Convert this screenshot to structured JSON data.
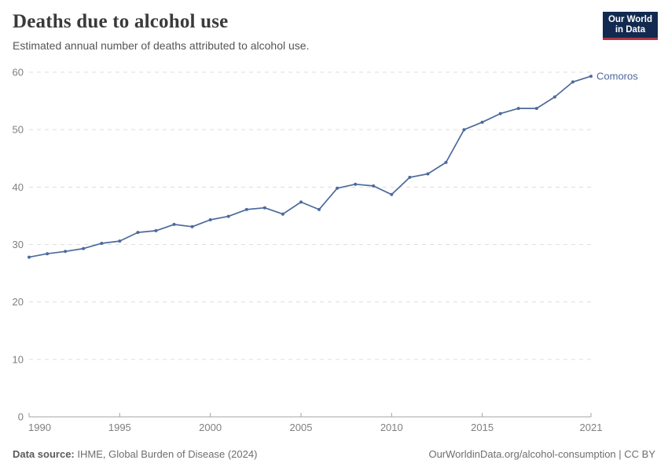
{
  "header": {
    "title": "Deaths due to alcohol use",
    "subtitle": "Estimated annual number of deaths attributed to alcohol use."
  },
  "logo": {
    "line1": "Our World",
    "line2": "in Data",
    "bg_color": "#122A4F",
    "accent_color": "#B13346"
  },
  "footer": {
    "source_label": "Data source:",
    "source_text": " IHME, Global Burden of Disease (2024)",
    "link_text": "OurWorldinData.org/alcohol-consumption | CC BY"
  },
  "chart_data": {
    "type": "line",
    "title": "Deaths due to alcohol use",
    "subtitle": "Estimated annual number of deaths attributed to alcohol use.",
    "entity_label": "Comoros",
    "line_color": "#4C6A9C",
    "grid": "horizontal-dashed",
    "legend_position": "end-of-line-label",
    "xlabel": "",
    "ylabel": "",
    "xlim": [
      1990,
      2021
    ],
    "ylim": [
      0,
      60
    ],
    "x_ticks": [
      1990,
      1995,
      2000,
      2005,
      2010,
      2015,
      2021
    ],
    "y_ticks": [
      0,
      10,
      20,
      30,
      40,
      50,
      60
    ],
    "x": [
      1990,
      1991,
      1992,
      1993,
      1994,
      1995,
      1996,
      1997,
      1998,
      1999,
      2000,
      2001,
      2002,
      2003,
      2004,
      2005,
      2006,
      2007,
      2008,
      2009,
      2010,
      2011,
      2012,
      2013,
      2014,
      2015,
      2016,
      2017,
      2018,
      2019,
      2020,
      2021
    ],
    "series": [
      {
        "name": "Comoros",
        "values": [
          27.8,
          28.4,
          28.8,
          29.3,
          30.2,
          30.6,
          32.1,
          32.4,
          33.5,
          33.1,
          34.3,
          34.9,
          36.1,
          36.4,
          35.3,
          37.4,
          36.1,
          39.8,
          40.5,
          40.2,
          38.7,
          41.7,
          42.3,
          44.3,
          50.0,
          51.3,
          52.8,
          53.7,
          53.7,
          55.7,
          58.3,
          59.3
        ]
      }
    ]
  }
}
